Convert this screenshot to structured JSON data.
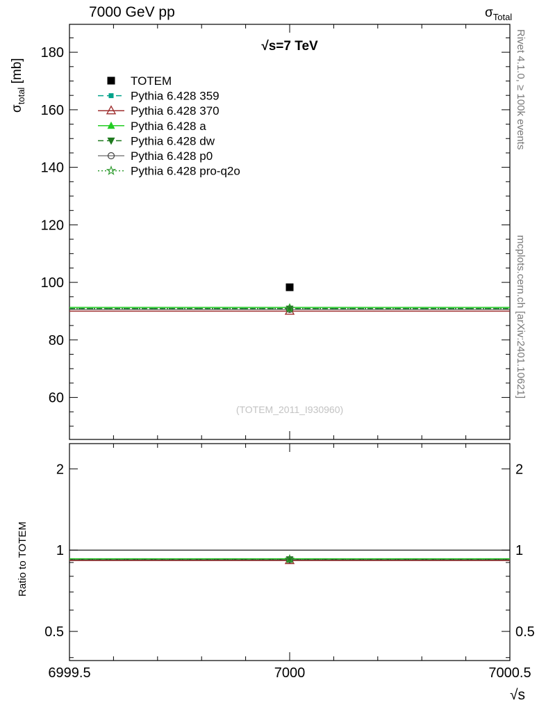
{
  "header": {
    "title": "7000 GeV pp",
    "observable": {
      "symbol": "σ",
      "sub": "Total"
    }
  },
  "main_panel": {
    "ylabel": {
      "symbol": "σ",
      "sub": "total",
      "unit": " [mb]"
    },
    "annotation": "√s=7 TeV"
  },
  "ratio_panel": {
    "ylabel": "Ratio to TOTEM"
  },
  "xaxis": {
    "label": "√s"
  },
  "watermarks": {
    "right_top": "Rivet 4.1.0, ≥ 100k events",
    "right_bottom": "mcplots.cern.ch [arXiv:2401.10621]",
    "analysis": "(TOTEM_2011_I930960)"
  },
  "chart_data": {
    "type": "line",
    "title": "7000 GeV pp",
    "xlabel": "√s",
    "ylabel": "σ_total [mb]",
    "xlim": [
      6999.5,
      7000.5
    ],
    "ylim": [
      45.4,
      189.7
    ],
    "x_ticks": [
      6999.5,
      7000,
      7000.5
    ],
    "x_tick_labels": [
      "6999.5",
      "7000",
      "7000.5"
    ],
    "x_minor_step": 0.1,
    "y_ticks": [
      60,
      80,
      100,
      120,
      140,
      160,
      180
    ],
    "y_minor_step": 5,
    "grid": false,
    "legend_position": "top-left",
    "reference": {
      "name": "TOTEM",
      "x": 7000,
      "y": 98.3,
      "marker": "square-filled",
      "color": "#000000",
      "line": "none"
    },
    "series": [
      {
        "name": "Pythia 6.428 359",
        "x": 7000,
        "y": 90.9,
        "color": "#00a28a",
        "line": "dashed",
        "marker": "square-filled-small"
      },
      {
        "name": "Pythia 6.428 370",
        "x": 7000,
        "y": 90.0,
        "color": "#9e2f2f",
        "line": "solid",
        "marker": "triangle-open"
      },
      {
        "name": "Pythia 6.428 a",
        "x": 7000,
        "y": 91.3,
        "color": "#22cc22",
        "line": "solid",
        "marker": "triangle-filled"
      },
      {
        "name": "Pythia 6.428 dw",
        "x": 7000,
        "y": 90.8,
        "color": "#1f7a1f",
        "line": "dashed",
        "marker": "triangle-down-filled"
      },
      {
        "name": "Pythia 6.428 p0",
        "x": 7000,
        "y": 90.6,
        "color": "#404040",
        "line": "solid",
        "marker": "circle-open"
      },
      {
        "name": "Pythia 6.428 pro-q2o",
        "x": 7000,
        "y": 90.9,
        "color": "#2d9a2d",
        "line": "dotted",
        "marker": "star-open"
      }
    ],
    "ratio": {
      "ylabel": "Ratio to TOTEM",
      "scale": "log",
      "ylim": [
        0.39,
        2.48
      ],
      "y_ticks": [
        0.5,
        1,
        2
      ],
      "y_tick_labels": [
        "0.5",
        "1",
        "2"
      ],
      "y_minor_ticks": [
        0.4,
        0.6,
        0.7,
        0.8,
        0.9
      ],
      "reference_line": 1.0
    }
  }
}
